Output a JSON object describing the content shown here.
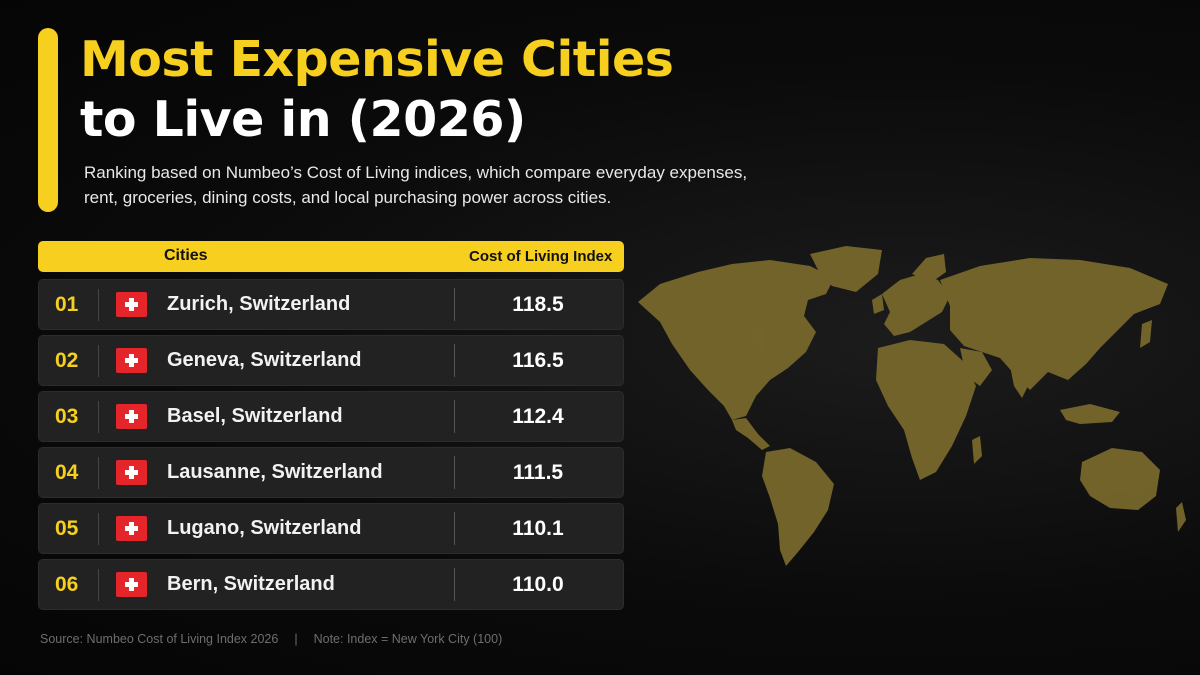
{
  "title": {
    "line1": "Most Expensive Cities",
    "line2": "to Live in (2026)"
  },
  "subtitle": "Ranking based on Numbeo’s Cost of Living indices, which compare everyday expenses, rent, groceries, dining costs, and local purchasing power across cities.",
  "colors": {
    "accent": "#f6cf1f",
    "background": "#0b0b0b",
    "row": "#222223",
    "flag": "#e4262b",
    "map": "#7a6a2c"
  },
  "table": {
    "headers": [
      "Cities",
      "Cost of Living Index"
    ],
    "rows": [
      {
        "rank": "01",
        "city": "Zurich, Switzerland",
        "flag_icon": "swiss-flag-icon",
        "value": "118.5"
      },
      {
        "rank": "02",
        "city": "Geneva, Switzerland",
        "flag_icon": "swiss-flag-icon",
        "value": "116.5"
      },
      {
        "rank": "03",
        "city": "Basel, Switzerland",
        "flag_icon": "swiss-flag-icon",
        "value": "112.4"
      },
      {
        "rank": "04",
        "city": "Lausanne, Switzerland",
        "flag_icon": "swiss-flag-icon",
        "value": "111.5"
      },
      {
        "rank": "05",
        "city": "Lugano, Switzerland",
        "flag_icon": "swiss-flag-icon",
        "value": "110.1"
      },
      {
        "rank": "06",
        "city": "Bern, Switzerland",
        "flag_icon": "swiss-flag-icon",
        "value": "110.0"
      }
    ]
  },
  "chart_data": {
    "type": "table",
    "title": "Most Expensive Cities to Live in (2026)",
    "columns": [
      "Cities",
      "Cost of Living Index"
    ],
    "categories": [
      "Zurich, Switzerland",
      "Geneva, Switzerland",
      "Basel, Switzerland",
      "Lausanne, Switzerland",
      "Lugano, Switzerland",
      "Bern, Switzerland"
    ],
    "values": [
      118.5,
      116.5,
      112.4,
      111.5,
      110.1,
      110.0
    ]
  },
  "footer": {
    "source": "Source: Numbeo Cost of Living Index 2026",
    "divider": "|",
    "note": "Note: Index = New York City (100)"
  }
}
